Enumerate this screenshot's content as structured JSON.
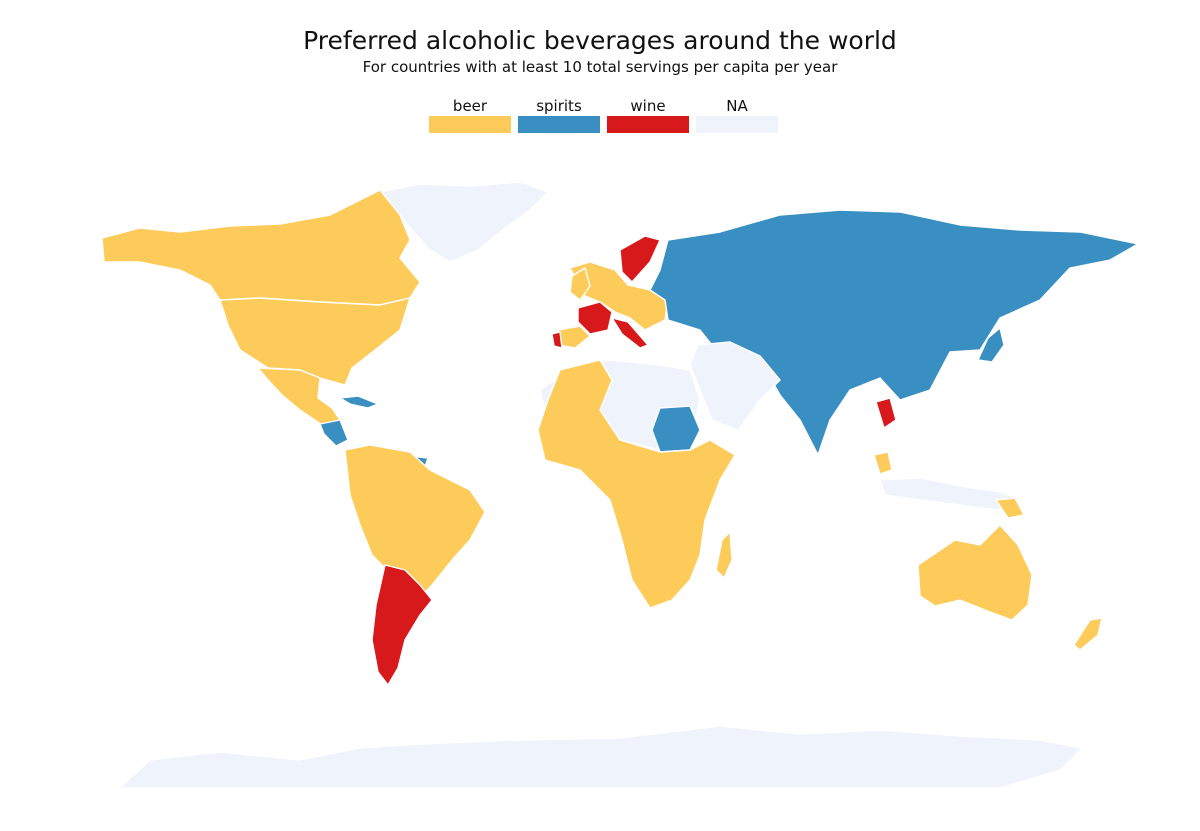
{
  "title": "Preferred alcoholic beverages around the world",
  "subtitle": "For countries with at least 10 total servings per capita per year",
  "legend": [
    {
      "label": "beer",
      "color": "#fdcb5a"
    },
    {
      "label": "spirits",
      "color": "#3a8fc2"
    },
    {
      "label": "wine",
      "color": "#d7191c"
    },
    {
      "label": "NA",
      "color": "#eef3fc"
    }
  ],
  "colors": {
    "beer": "#fdcb5a",
    "spirits": "#3a8fc2",
    "wine": "#d7191c",
    "na": "#eef3fc"
  }
}
